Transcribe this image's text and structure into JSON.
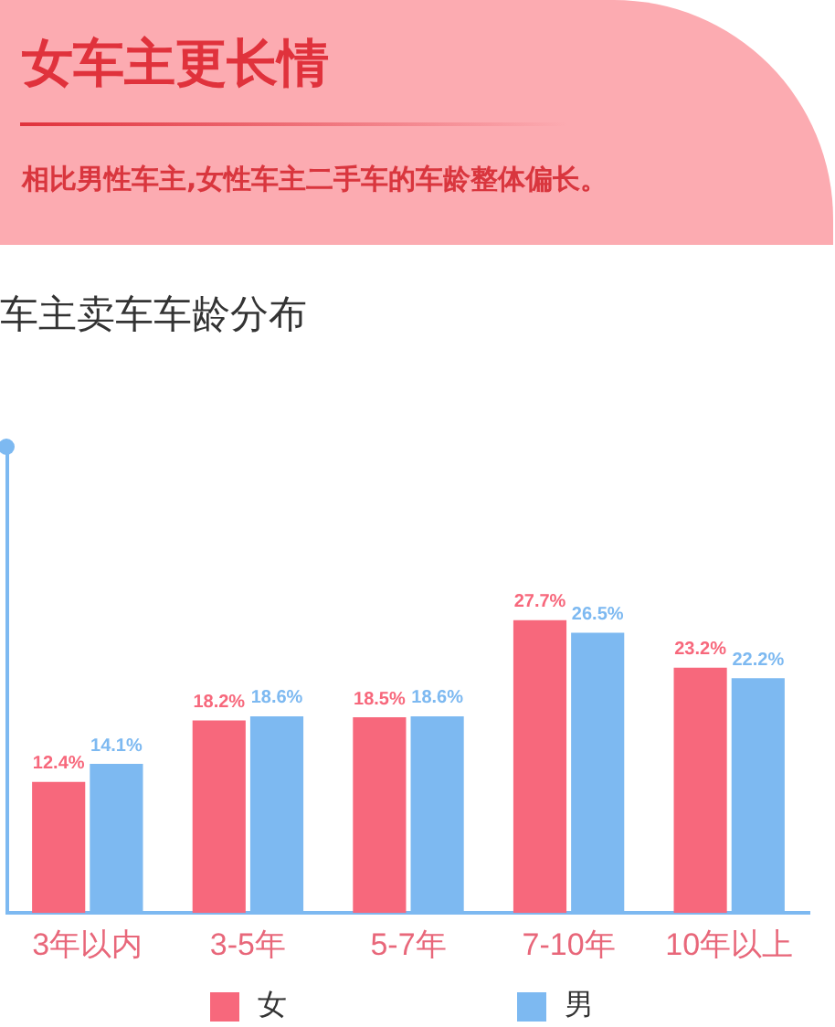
{
  "chart_data": {
    "type": "bar",
    "title": "女车主更长情",
    "subtitle": "相比男性车主,女性车主二手车的车龄整体偏长。",
    "annotations": [
      "车主卖车车龄分布"
    ],
    "categories": [
      "3年以内",
      "3-5年",
      "5-7年",
      "7-10年",
      "10年以上"
    ],
    "series": [
      {
        "name": "女",
        "color": "#f7687c",
        "values": [
          12.4,
          18.2,
          18.5,
          27.7,
          23.2
        ],
        "value_labels": [
          "12.4%",
          "18.2%",
          "18.5%",
          "27.7%",
          "23.2%"
        ]
      },
      {
        "name": "男",
        "color": "#7db9f1",
        "values": [
          14.1,
          18.6,
          18.6,
          26.5,
          22.2
        ],
        "value_labels": [
          "14.1%",
          "18.6%",
          "18.6%",
          "26.5%",
          "22.2%"
        ]
      }
    ],
    "ylim": [
      0,
      44
    ],
    "tick_labels": "x",
    "grid": false,
    "legend": "bottom"
  }
}
